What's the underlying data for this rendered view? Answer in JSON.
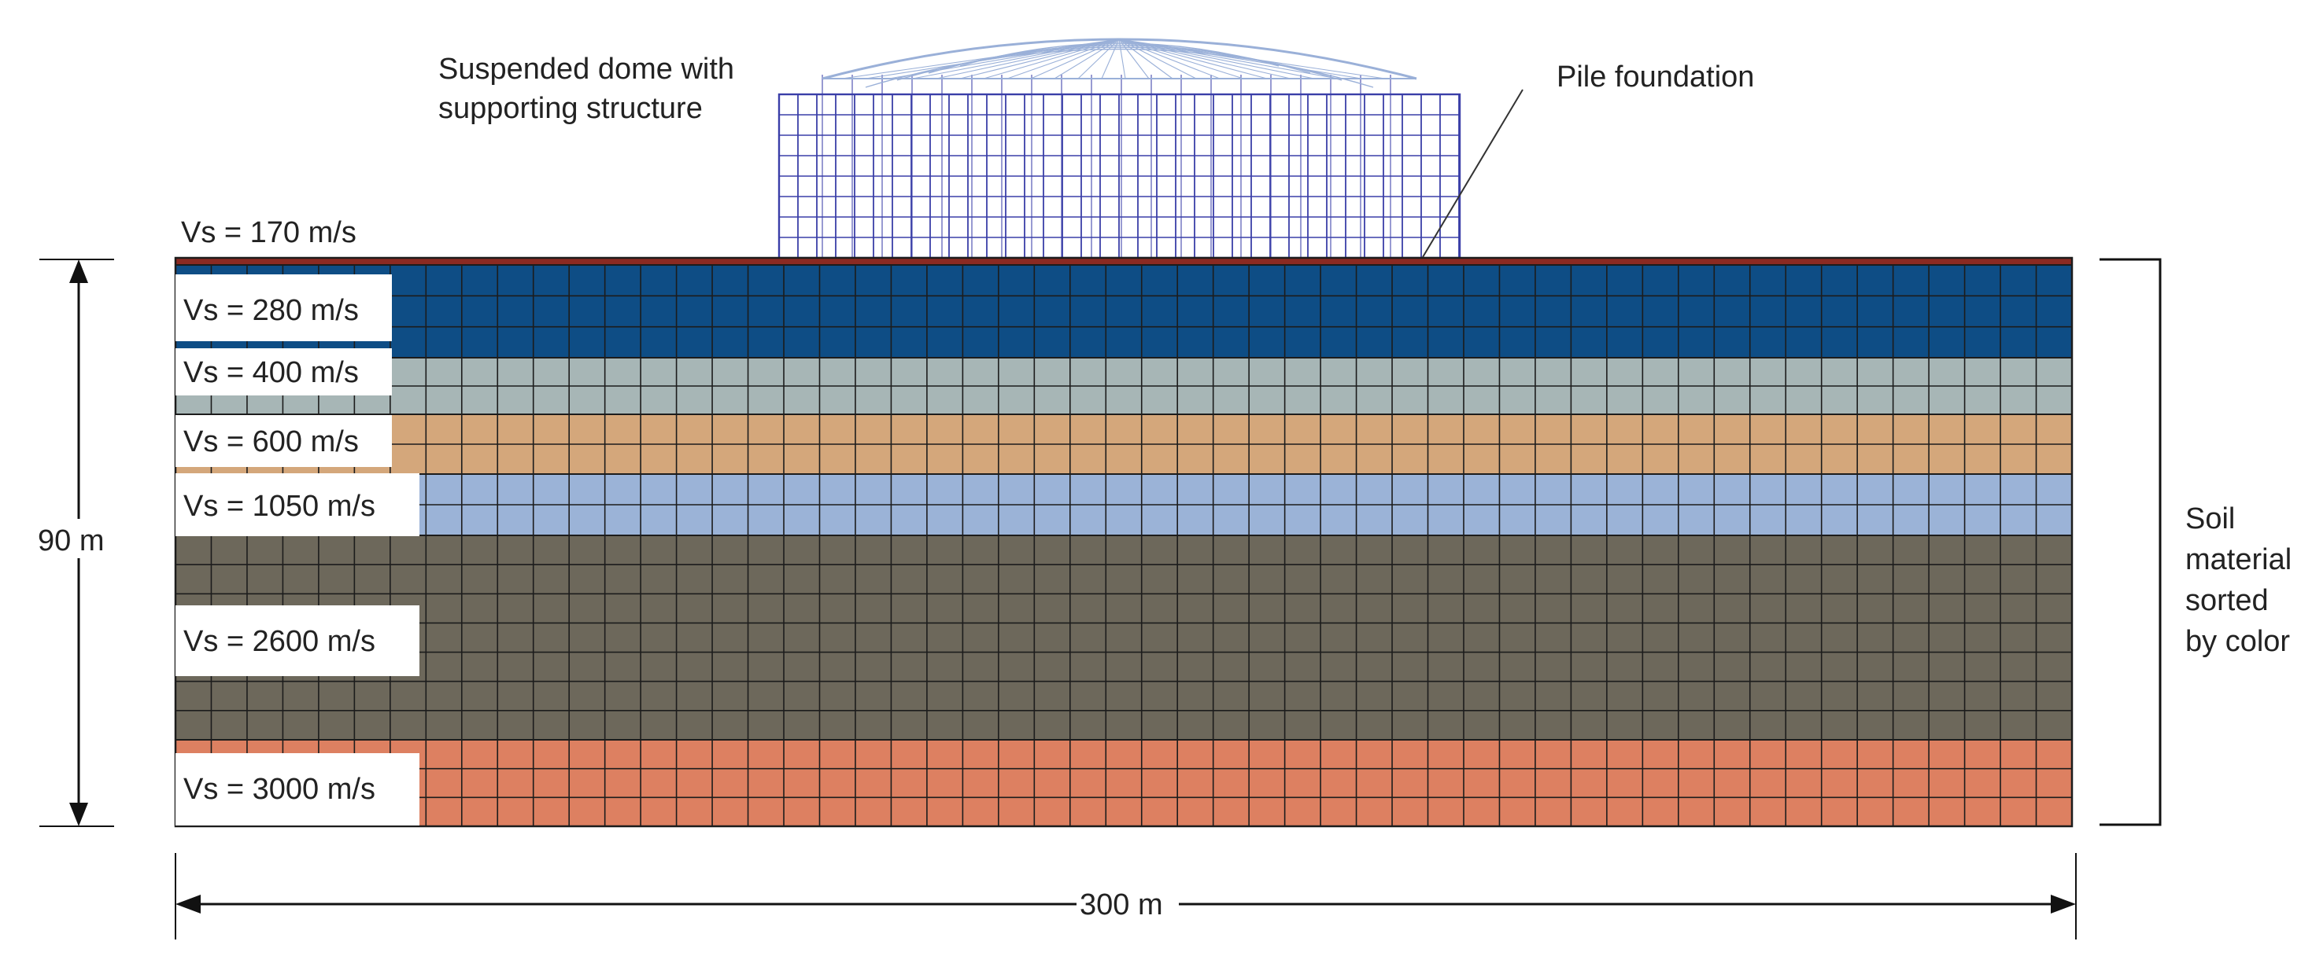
{
  "annotations": {
    "dome_label": [
      "Suspended dome with",
      "supporting structure"
    ],
    "pile_label": "Pile foundation",
    "side_label": [
      "Soil",
      "material",
      "sorted",
      "by color"
    ],
    "depth": "90 m",
    "width": "300 m"
  },
  "layers": [
    {
      "label": "Vs = 170 m/s",
      "color": "#8b2a22"
    },
    {
      "label": "Vs = 280 m/s",
      "color": "#0e4d85"
    },
    {
      "label": "Vs = 400 m/s",
      "color": "#a7b6b6"
    },
    {
      "label": "Vs = 600 m/s",
      "color": "#d4a77b"
    },
    {
      "label": "Vs = 1050 m/s",
      "color": "#9bb3d7"
    },
    {
      "label": "Vs = 2600 m/s",
      "color": "#6d685b"
    },
    {
      "label": "Vs = 3000 m/s",
      "color": "#dd8061"
    }
  ],
  "colors": {
    "mesh_line": "#1c1c1c",
    "dome_frame": "#3a3fa8",
    "dome_roof": "#9ab0d8"
  }
}
